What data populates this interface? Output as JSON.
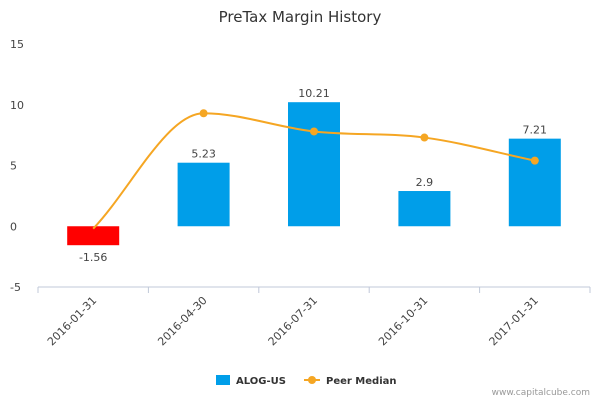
{
  "chart_data": {
    "type": "bar",
    "title": "PreTax Margin History",
    "categories": [
      "2016-01-31",
      "2016-04-30",
      "2016-07-31",
      "2016-10-31",
      "2017-01-31"
    ],
    "series": [
      {
        "name": "ALOG-US",
        "type": "bar",
        "values": [
          -1.56,
          5.23,
          10.21,
          2.9,
          7.21
        ],
        "data_labels": [
          "-1.56",
          "5.23",
          "10.21",
          "2.9",
          "7.21"
        ],
        "color": "#009ee9",
        "negative_color": "#ff0000"
      },
      {
        "name": "Peer Median",
        "type": "line",
        "values": [
          -0.2,
          9.3,
          7.8,
          7.3,
          5.4
        ],
        "color": "#f5a623"
      }
    ],
    "y_ticks": [
      "15",
      "10",
      "5",
      "0",
      "-5"
    ],
    "ylim": [
      -5,
      15
    ],
    "grid": false,
    "legend": "bottom-center"
  },
  "credit": "www.capitalcube.com"
}
